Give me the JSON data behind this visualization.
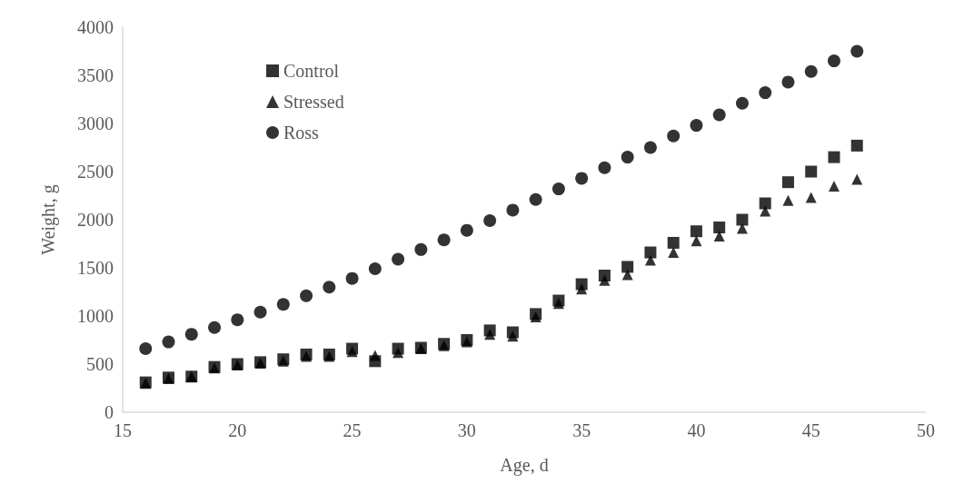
{
  "chart_data": {
    "type": "scatter",
    "xlabel": "Age, d",
    "ylabel": "Weight, g",
    "x": [
      16,
      17,
      18,
      19,
      20,
      21,
      22,
      23,
      24,
      25,
      26,
      27,
      28,
      29,
      30,
      31,
      32,
      33,
      34,
      35,
      36,
      37,
      38,
      39,
      40,
      41,
      42,
      43,
      44,
      45,
      46,
      47
    ],
    "series": [
      {
        "name": "Control",
        "color": "#000000",
        "marker": "square",
        "values": [
          310,
          360,
          370,
          470,
          500,
          520,
          550,
          600,
          600,
          660,
          530,
          660,
          670,
          710,
          750,
          850,
          830,
          1020,
          1160,
          1330,
          1420,
          1510,
          1660,
          1760,
          1880,
          1920,
          2000,
          2170,
          2390,
          2500,
          2650,
          2770
        ]
      },
      {
        "name": "Stressed",
        "color": "#000000",
        "marker": "triangle",
        "values": [
          300,
          350,
          370,
          460,
          490,
          510,
          530,
          580,
          580,
          630,
          590,
          620,
          660,
          690,
          730,
          810,
          790,
          990,
          1130,
          1280,
          1370,
          1430,
          1580,
          1660,
          1780,
          1830,
          1910,
          2090,
          2200,
          2230,
          2350,
          2420
        ]
      },
      {
        "name": "Ross",
        "color": "#000000",
        "marker": "circle",
        "values": [
          660,
          730,
          810,
          880,
          960,
          1040,
          1120,
          1210,
          1300,
          1390,
          1490,
          1590,
          1690,
          1790,
          1890,
          1990,
          2100,
          2210,
          2320,
          2430,
          2540,
          2650,
          2750,
          2870,
          2980,
          3090,
          3210,
          3320,
          3430,
          3540,
          3650,
          3750
        ]
      }
    ],
    "xlim": [
      15,
      50
    ],
    "xticks": [
      15,
      20,
      25,
      30,
      35,
      40,
      45,
      50
    ],
    "ylim": [
      0,
      4000
    ],
    "yticks": [
      0,
      500,
      1000,
      1500,
      2000,
      2500,
      3000,
      3500,
      4000
    ],
    "grid": false,
    "legend": "top left"
  }
}
